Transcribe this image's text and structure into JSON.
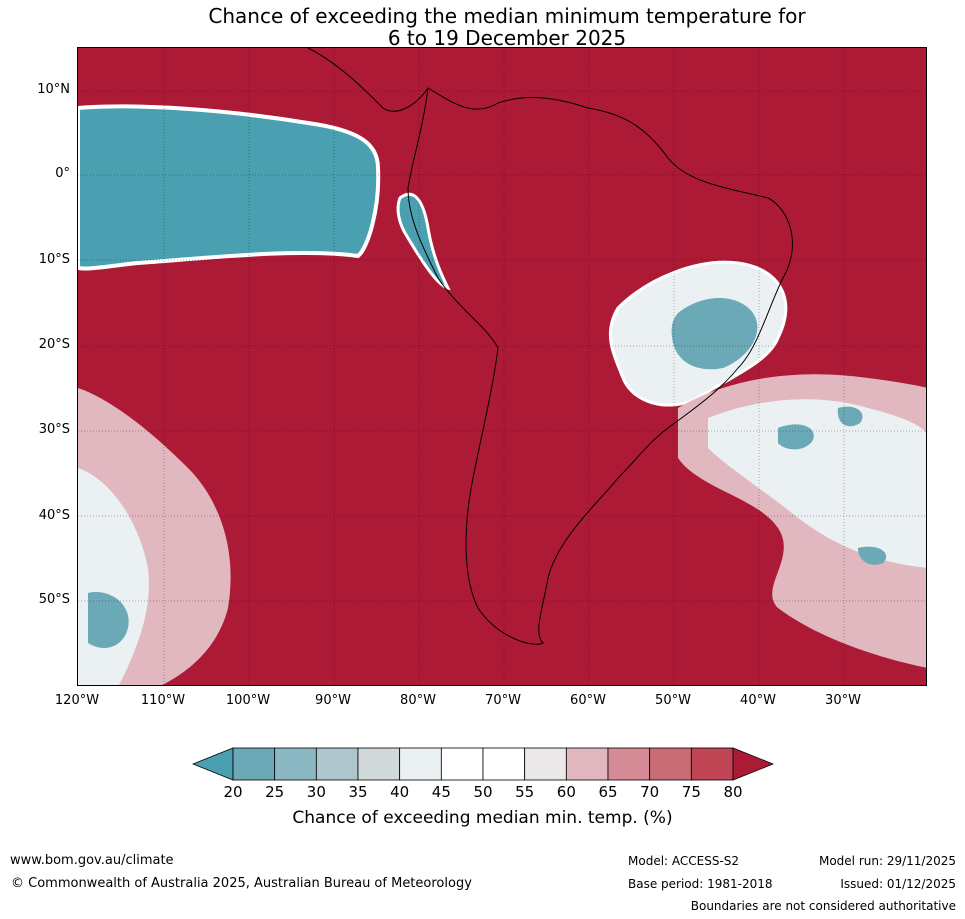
{
  "title": {
    "line1": "Chance of exceeding the median minimum temperature for",
    "line2": "6 to 19 December 2025"
  },
  "map": {
    "latitude_labels": [
      "10°N",
      "0°",
      "10°S",
      "20°S",
      "30°S",
      "40°S",
      "50°S"
    ],
    "longitude_labels": [
      "120°W",
      "110°W",
      "100°W",
      "90°W",
      "80°W",
      "70°W",
      "60°W",
      "50°W",
      "40°W",
      "30°W"
    ],
    "colors": {
      "above_80": "#ad1a36",
      "teal_low": "#4a9fb0",
      "white_mid": "#ffffff"
    }
  },
  "colorbar": {
    "ticks": [
      "20",
      "25",
      "30",
      "35",
      "40",
      "45",
      "50",
      "55",
      "60",
      "65",
      "70",
      "75",
      "80"
    ],
    "colors": [
      "#4a9fb0",
      "#6ba9b6",
      "#8cb8c3",
      "#aec6cb",
      "#d2d9db",
      "#ebf0f2",
      "#ffffff",
      "#ffffff",
      "#eae8e9",
      "#e1b8bf",
      "#d58b95",
      "#c86c76",
      "#bf4554",
      "#ad1a36"
    ],
    "label": "Chance of exceeding median min. temp. (%)"
  },
  "footer": {
    "website": "www.bom.gov.au/climate",
    "copyright": "© Commonwealth of Australia 2025, Australian Bureau of Meteorology",
    "model": "Model: ACCESS-S2",
    "base_period": "Base period: 1981-2018",
    "model_run": "Model run: 29/11/2025",
    "issued": "Issued: 01/12/2025",
    "disclaimer": "Boundaries are not considered authoritative"
  }
}
